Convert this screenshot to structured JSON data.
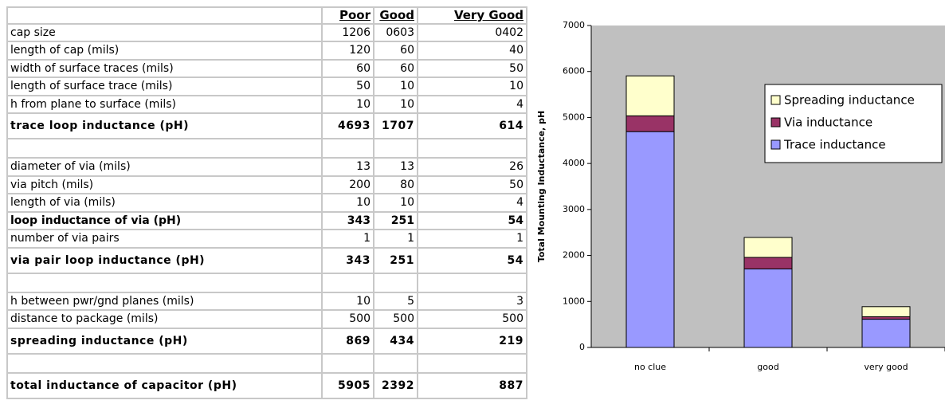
{
  "table": {
    "columns": [
      "Poor",
      "Good",
      "Very Good"
    ],
    "sections": [
      {
        "rows": [
          {
            "label": "cap size",
            "values": [
              "1206",
              "0603",
              "0402"
            ]
          },
          {
            "label": "length of cap (mils)",
            "values": [
              120,
              60,
              40
            ]
          },
          {
            "label": "width of surface traces (mils)",
            "values": [
              60,
              60,
              50
            ]
          },
          {
            "label": "length of surface trace (mils)",
            "values": [
              50,
              10,
              10
            ]
          },
          {
            "label": "h from plane to surface (mils)",
            "values": [
              10,
              10,
              4
            ]
          },
          {
            "label": "trace loop inductance (pH)",
            "values": [
              4693,
              1707,
              614
            ],
            "style": "result"
          }
        ]
      },
      {
        "rows": [
          {
            "label": "diameter of via (mils)",
            "values": [
              13,
              13,
              26
            ]
          },
          {
            "label": "via pitch (mils)",
            "values": [
              200,
              80,
              50
            ]
          },
          {
            "label": "length of via (mils)",
            "values": [
              10,
              10,
              4
            ]
          },
          {
            "label": "loop inductance of via (pH)",
            "values": [
              343,
              251,
              54
            ],
            "style": "bold"
          },
          {
            "label": "number of via pairs",
            "values": [
              1,
              1,
              1
            ]
          },
          {
            "label": "via pair loop inductance (pH)",
            "values": [
              343,
              251,
              54
            ],
            "style": "result"
          }
        ]
      },
      {
        "rows": [
          {
            "label": "h between pwr/gnd planes (mils)",
            "values": [
              10,
              5,
              3
            ]
          },
          {
            "label": "distance to package (mils)",
            "values": [
              500,
              500,
              500
            ]
          },
          {
            "label": "spreading inductance (pH)",
            "values": [
              869,
              434,
              219
            ],
            "style": "result"
          }
        ]
      },
      {
        "rows": [
          {
            "label": "total inductance of capacitor (pH)",
            "values": [
              5905,
              2392,
              887
            ],
            "style": "result"
          }
        ]
      }
    ]
  },
  "chart_data": {
    "type": "stacked_bar",
    "y_label": "Total Mounting Inductance, pH",
    "categories": [
      "no clue",
      "good",
      "very good"
    ],
    "series": [
      {
        "name": "Trace inductance",
        "color": "#9999ff",
        "values": [
          4693,
          1707,
          614
        ]
      },
      {
        "name": "Via inductance",
        "color": "#993366",
        "values": [
          343,
          251,
          54
        ]
      },
      {
        "name": "Spreading inductance",
        "color": "#ffffcc",
        "values": [
          869,
          434,
          219
        ]
      }
    ],
    "ylim": [
      0,
      7000
    ],
    "yticks": [
      0,
      1000,
      2000,
      3000,
      4000,
      5000,
      6000,
      7000
    ],
    "legend": "right",
    "plot_background": "#c0c0c0"
  }
}
